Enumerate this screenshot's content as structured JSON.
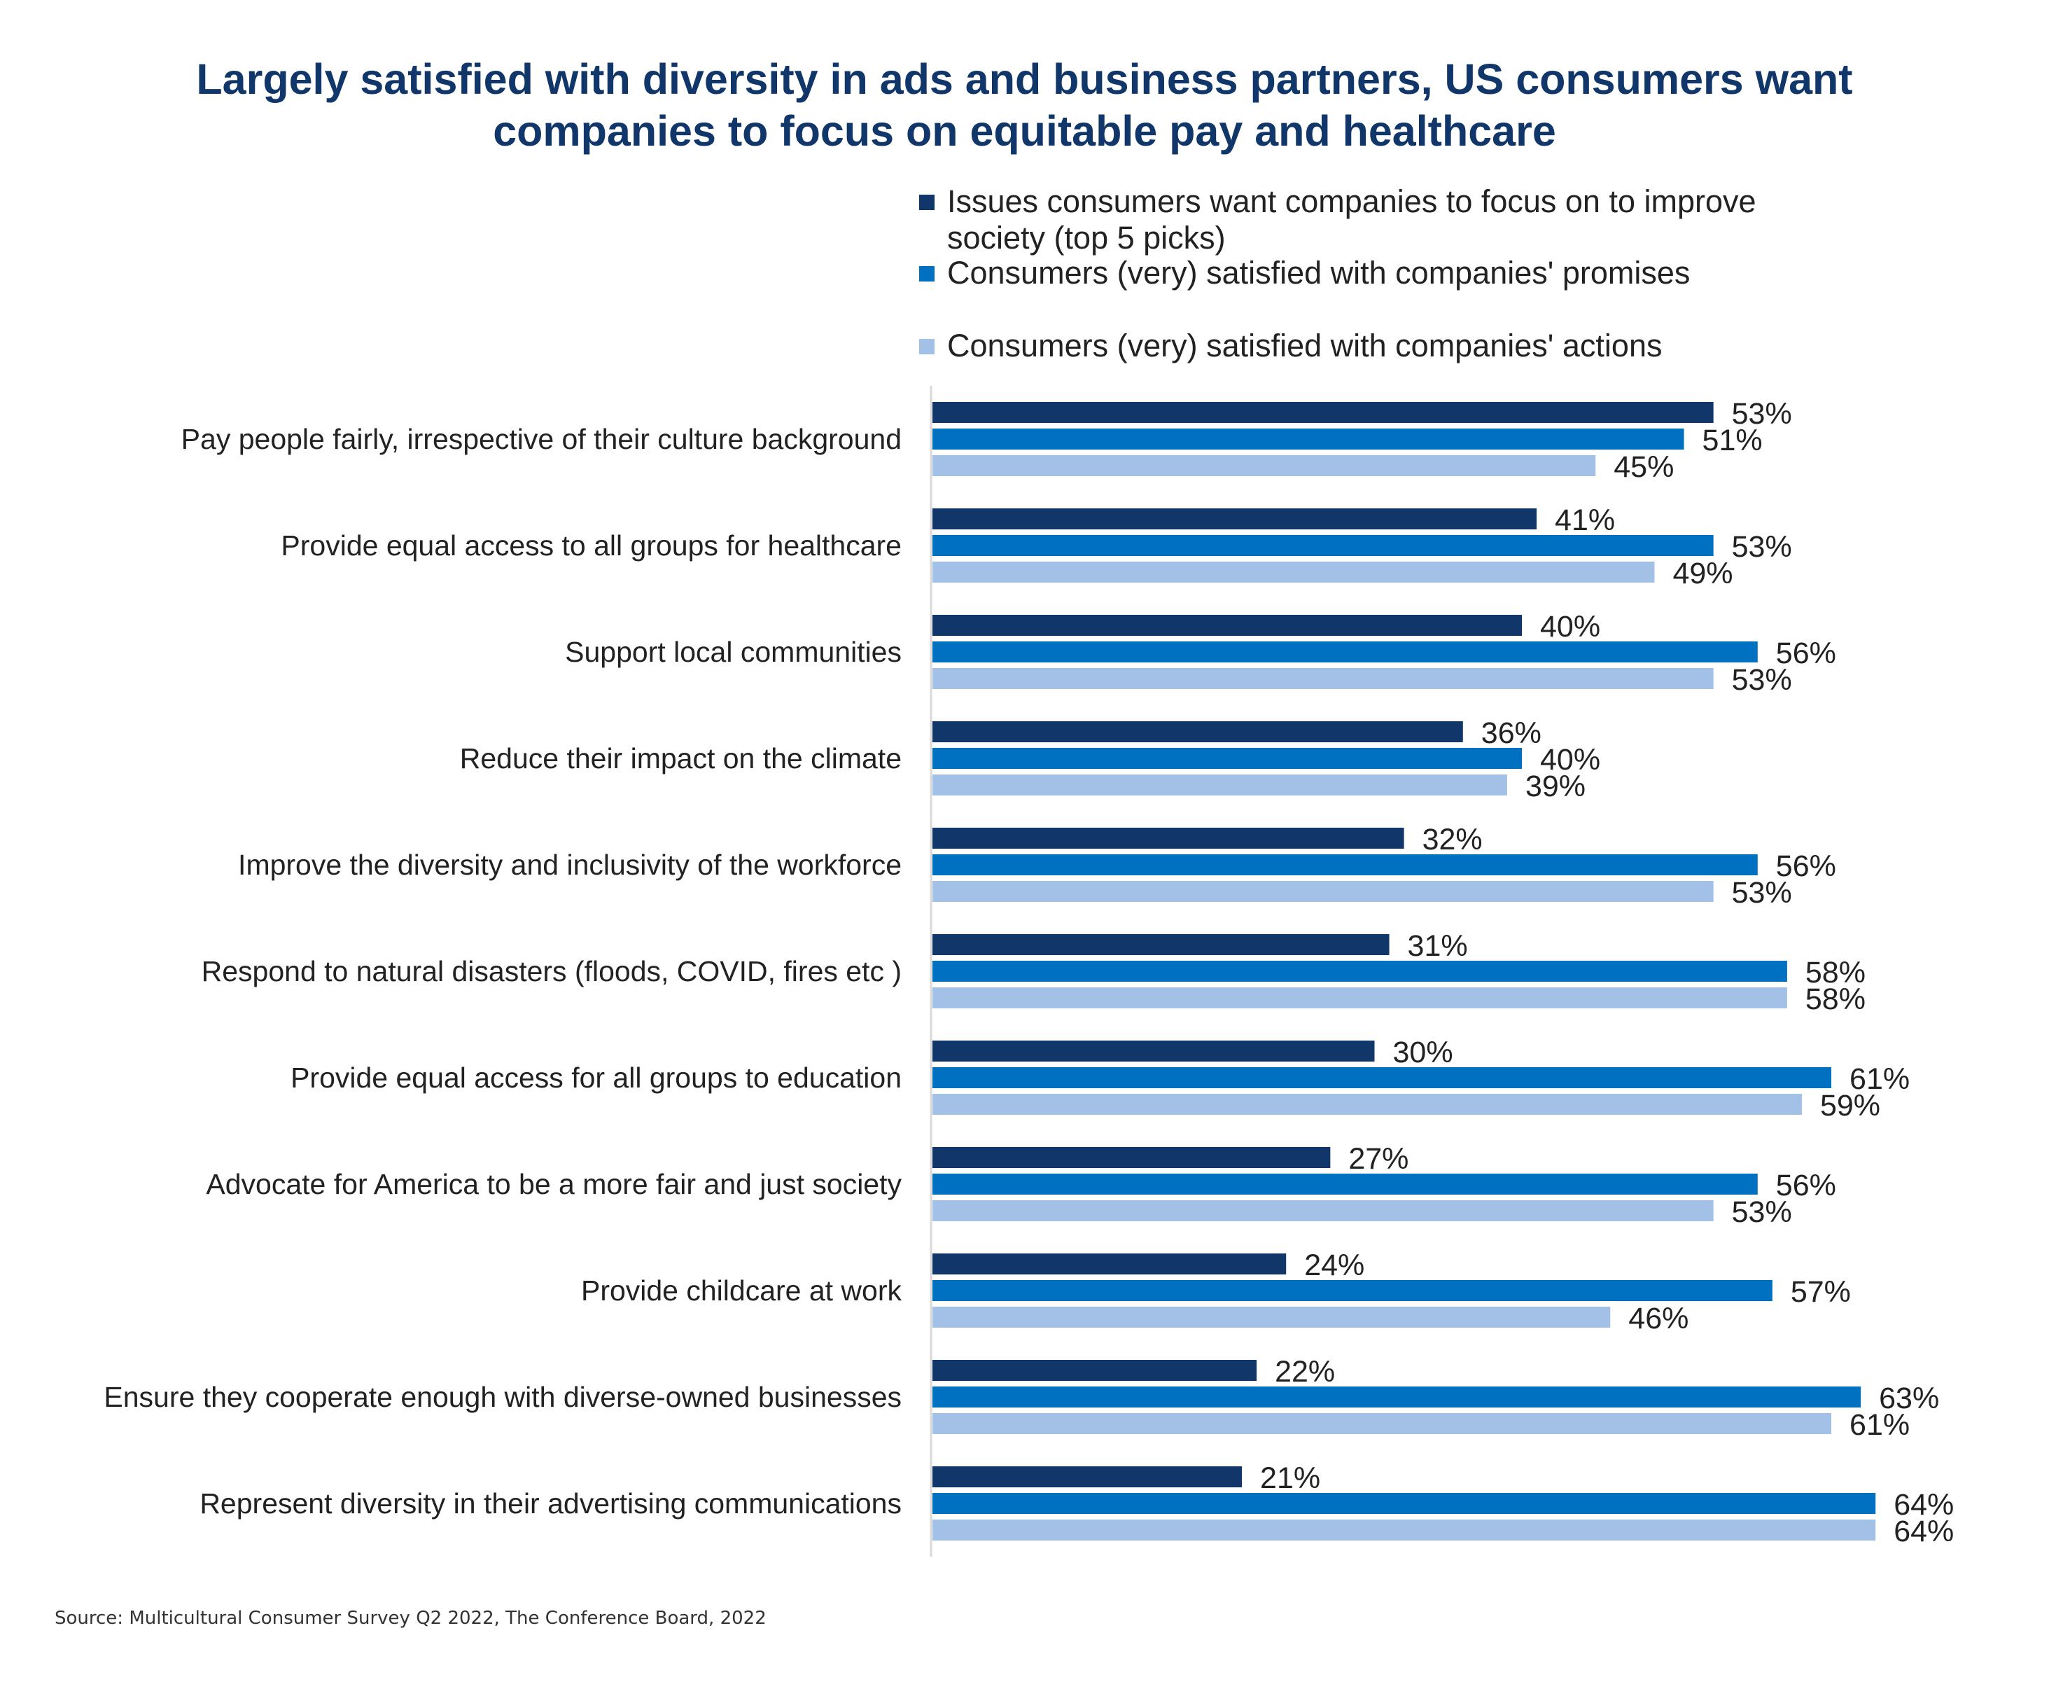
{
  "title": {
    "line1": "Largely satisfied with diversity in ads and business partners, US consumers want",
    "line2": "companies to focus on equitable pay and healthcare"
  },
  "legend": [
    {
      "label": "Issues consumers want companies to focus on to improve society (top 5 picks)",
      "color": "#10366A"
    },
    {
      "label": "Consumers (very) satisfied with companies' promises",
      "color": "#0070C0"
    },
    {
      "label": "Consumers (very) satisfied with companies' actions",
      "color": "#A3C1E6"
    }
  ],
  "source": "Source: Multicultural Consumer Survey Q2 2022, The Conference Board, 2022",
  "chart_data": {
    "type": "bar",
    "orientation": "horizontal",
    "title": "Largely satisfied with diversity in ads and business partners, US consumers want companies to focus on equitable pay and healthcare",
    "xlabel": "",
    "ylabel": "",
    "xlim": [
      0,
      64
    ],
    "grid": false,
    "legend_position": "top-right",
    "value_format": "percent",
    "categories": [
      "Pay people fairly, irrespective of their culture background",
      "Provide equal access to all groups for healthcare",
      "Support local communities",
      "Reduce their impact on the climate",
      "Improve the diversity and inclusivity of the workforce",
      "Respond to natural disasters (floods, COVID, fires etc )",
      "Provide equal access for all groups to education",
      "Advocate for America to be a more fair and just society",
      "Provide childcare at work",
      "Ensure they cooperate enough with diverse-owned businesses",
      "Represent diversity in their advertising communications"
    ],
    "series": [
      {
        "name": "Issues consumers want companies to focus on to improve society (top 5 picks)",
        "color": "#10366A",
        "values": [
          53,
          41,
          40,
          36,
          32,
          31,
          30,
          27,
          24,
          22,
          21
        ]
      },
      {
        "name": "Consumers (very) satisfied with companies' promises",
        "color": "#0070C0",
        "values": [
          51,
          53,
          56,
          40,
          56,
          58,
          61,
          56,
          57,
          63,
          64
        ]
      },
      {
        "name": "Consumers (very) satisfied with companies' actions",
        "color": "#A3C1E6",
        "values": [
          45,
          49,
          53,
          39,
          53,
          58,
          59,
          53,
          46,
          61,
          64
        ]
      }
    ]
  }
}
